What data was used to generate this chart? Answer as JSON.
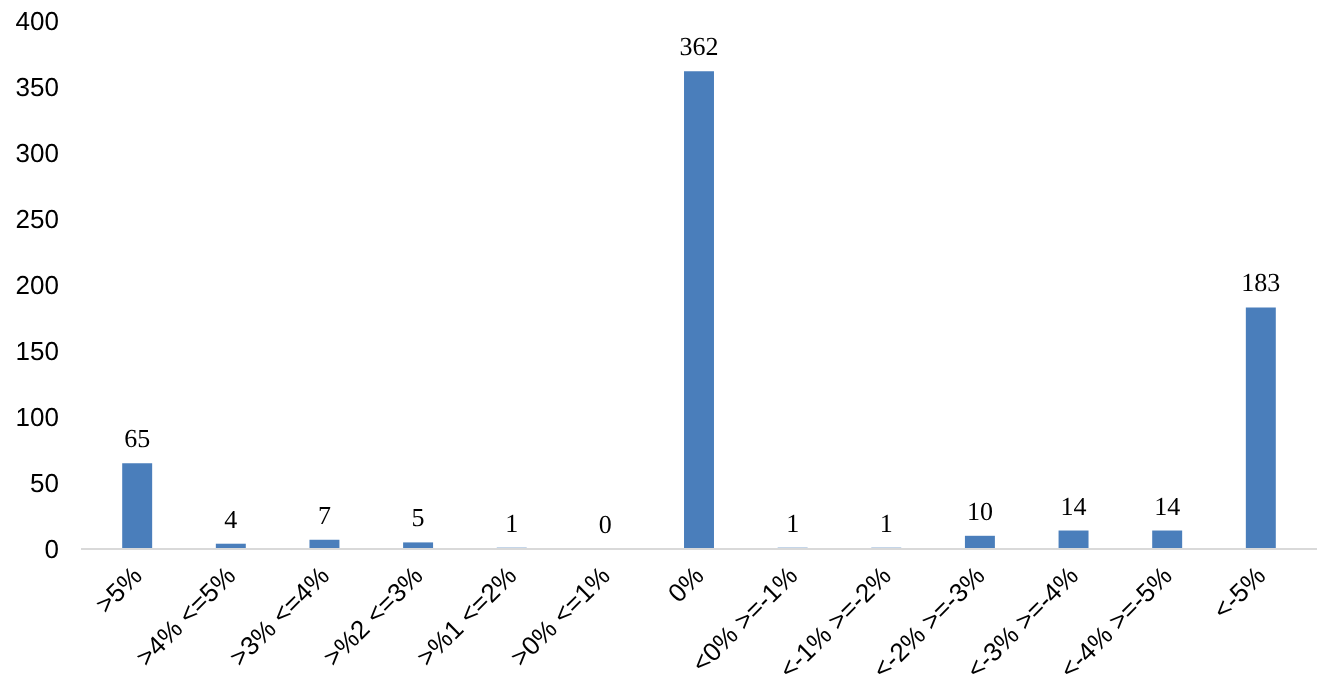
{
  "chart_data": {
    "type": "bar",
    "categories": [
      ">5%",
      ">4% <=5%",
      ">3% <=4%",
      ">%2 <=3%",
      ">%1 <=2%",
      ">0% <=1%",
      "0%",
      "<0% >=-1%",
      "<-1% >=-2%",
      "<-2% >=-3%",
      "<-3% >=-4%",
      "<-4% >=-5%",
      "<-5%"
    ],
    "values": [
      65,
      4,
      7,
      5,
      1,
      0,
      362,
      1,
      1,
      10,
      14,
      14,
      183
    ],
    "color": "#4a7ebb",
    "ylim": [
      0,
      400
    ],
    "yticks": [
      0,
      50,
      100,
      150,
      200,
      250,
      300,
      350,
      400
    ],
    "grid": false,
    "data_labels": true
  }
}
